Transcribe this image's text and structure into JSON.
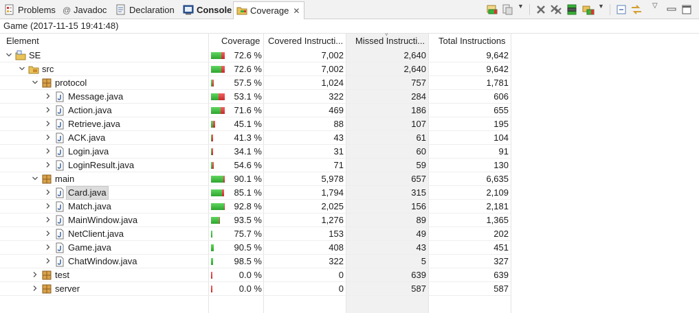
{
  "tabs": [
    {
      "label": "Problems",
      "icon": "problems-icon"
    },
    {
      "label": "Javadoc",
      "icon": "javadoc-icon"
    },
    {
      "label": "Declaration",
      "icon": "declaration-icon"
    },
    {
      "label": "Console",
      "icon": "console-icon"
    },
    {
      "label": "Coverage",
      "icon": "coverage-icon"
    }
  ],
  "toolbar_icons": [
    "relaunch-coverage-icon",
    "dump-execution-data-icon",
    "dropdown-icon",
    "remove-session-icon",
    "remove-all-sessions-icon",
    "merge-sessions-icon",
    "select-session-icon",
    "dropdown-icon",
    "collapse-all-icon",
    "link-with-editor-icon",
    "view-menu-icon",
    "minimize-icon",
    "maximize-icon"
  ],
  "session_title": "Game (2017-11-15 19:41:48)",
  "columns": [
    "Element",
    "Coverage",
    "Covered Instructi...",
    "Missed Instructi...",
    "Total Instructions"
  ],
  "colors": {
    "covered": "#2ea52e",
    "missed": "#c72a2a",
    "selected_column": "#f1f1f1"
  },
  "rows": [
    {
      "name": "SE",
      "type": "project",
      "level": 0,
      "expanded": true,
      "coverage": "72.6 %",
      "covered": "7,002",
      "missed": "2,640",
      "total": "9,642",
      "bar_fraction": 1.0,
      "cov_frac": 0.726
    },
    {
      "name": "src",
      "type": "folder",
      "level": 1,
      "expanded": true,
      "coverage": "72.6 %",
      "covered": "7,002",
      "missed": "2,640",
      "total": "9,642",
      "bar_fraction": 1.0,
      "cov_frac": 0.726
    },
    {
      "name": "protocol",
      "type": "package",
      "level": 2,
      "expanded": true,
      "coverage": "57.5 %",
      "covered": "1,024",
      "missed": "757",
      "total": "1,781",
      "bar_fraction": 0.185,
      "cov_frac": 0.575
    },
    {
      "name": "Message.java",
      "type": "file",
      "level": 3,
      "expanded": false,
      "coverage": "53.1 %",
      "covered": "322",
      "missed": "284",
      "total": "606",
      "bar_fraction": 1.0,
      "cov_frac": 0.531
    },
    {
      "name": "Action.java",
      "type": "file",
      "level": 3,
      "expanded": false,
      "coverage": "71.6 %",
      "covered": "469",
      "missed": "186",
      "total": "655",
      "bar_fraction": 1.0,
      "cov_frac": 0.716
    },
    {
      "name": "Retrieve.java",
      "type": "file",
      "level": 3,
      "expanded": false,
      "coverage": "45.1 %",
      "covered": "88",
      "missed": "107",
      "total": "195",
      "bar_fraction": 0.298,
      "cov_frac": 0.451
    },
    {
      "name": "ACK.java",
      "type": "file",
      "level": 3,
      "expanded": false,
      "coverage": "41.3 %",
      "covered": "43",
      "missed": "61",
      "total": "104",
      "bar_fraction": 0.159,
      "cov_frac": 0.413
    },
    {
      "name": "Login.java",
      "type": "file",
      "level": 3,
      "expanded": false,
      "coverage": "34.1 %",
      "covered": "31",
      "missed": "60",
      "total": "91",
      "bar_fraction": 0.139,
      "cov_frac": 0.341
    },
    {
      "name": "LoginResult.java",
      "type": "file",
      "level": 3,
      "expanded": false,
      "coverage": "54.6 %",
      "covered": "71",
      "missed": "59",
      "total": "130",
      "bar_fraction": 0.198,
      "cov_frac": 0.546
    },
    {
      "name": "main",
      "type": "package",
      "level": 2,
      "expanded": true,
      "coverage": "90.1 %",
      "covered": "5,978",
      "missed": "657",
      "total": "6,635",
      "bar_fraction": 1.0,
      "cov_frac": 0.901
    },
    {
      "name": "Card.java",
      "type": "file",
      "level": 3,
      "expanded": false,
      "coverage": "85.1 %",
      "covered": "1,794",
      "missed": "315",
      "total": "2,109",
      "bar_fraction": 0.967,
      "cov_frac": 0.851,
      "selected": true
    },
    {
      "name": "Match.java",
      "type": "file",
      "level": 3,
      "expanded": false,
      "coverage": "92.8 %",
      "covered": "2,025",
      "missed": "156",
      "total": "2,181",
      "bar_fraction": 1.0,
      "cov_frac": 0.928
    },
    {
      "name": "MainWindow.java",
      "type": "file",
      "level": 3,
      "expanded": false,
      "coverage": "93.5 %",
      "covered": "1,276",
      "missed": "89",
      "total": "1,365",
      "bar_fraction": 0.626,
      "cov_frac": 0.935
    },
    {
      "name": "NetClient.java",
      "type": "file",
      "level": 3,
      "expanded": false,
      "coverage": "75.7 %",
      "covered": "153",
      "missed": "49",
      "total": "202",
      "bar_fraction": 0.093,
      "cov_frac": 0.757
    },
    {
      "name": "Game.java",
      "type": "file",
      "level": 3,
      "expanded": false,
      "coverage": "90.5 %",
      "covered": "408",
      "missed": "43",
      "total": "451",
      "bar_fraction": 0.207,
      "cov_frac": 0.905
    },
    {
      "name": "ChatWindow.java",
      "type": "file",
      "level": 3,
      "expanded": false,
      "coverage": "98.5 %",
      "covered": "322",
      "missed": "5",
      "total": "327",
      "bar_fraction": 0.15,
      "cov_frac": 0.985
    },
    {
      "name": "test",
      "type": "package",
      "level": 2,
      "expanded": false,
      "coverage": "0.0 %",
      "covered": "0",
      "missed": "639",
      "total": "639",
      "bar_fraction": 0.096,
      "cov_frac": 0.0
    },
    {
      "name": "server",
      "type": "package",
      "level": 2,
      "expanded": false,
      "coverage": "0.0 %",
      "covered": "0",
      "missed": "587",
      "total": "587",
      "bar_fraction": 0.088,
      "cov_frac": 0.0
    }
  ]
}
